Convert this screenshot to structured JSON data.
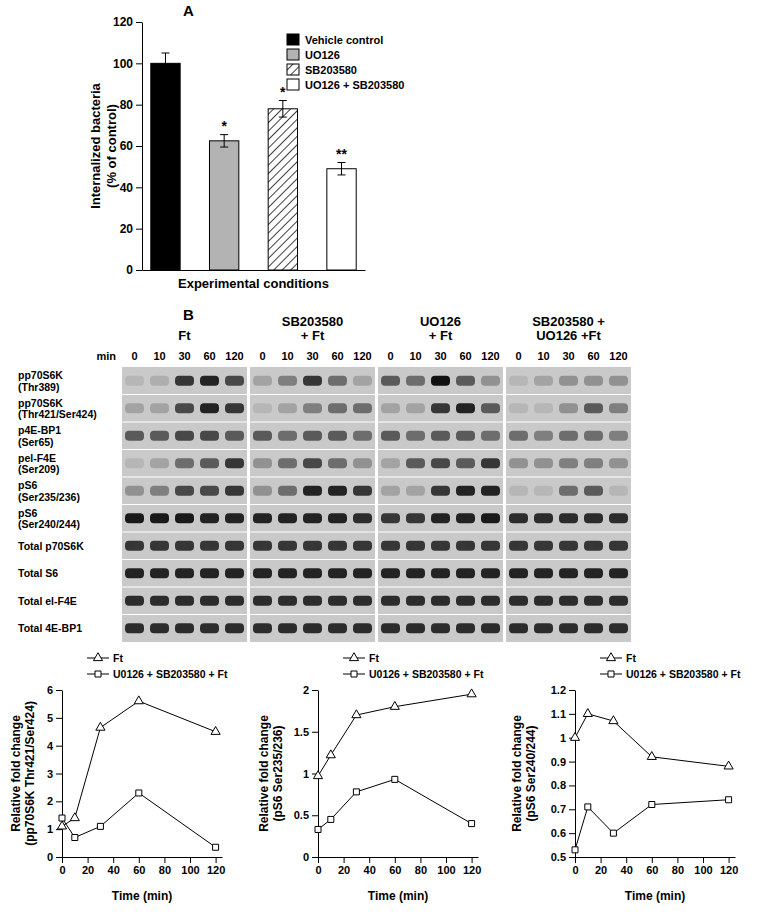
{
  "panel_labels": [
    "A",
    "B"
  ],
  "chart_data": [
    {
      "type": "bar",
      "categories": [
        null
      ],
      "series": [
        {
          "name": "Vehicle control",
          "color": "#000000",
          "values": [
            100
          ],
          "error": [
            5
          ]
        },
        {
          "name": "UO126",
          "color": "#b3b3b3",
          "values": [
            62.5
          ],
          "error": [
            3
          ],
          "significance": "*"
        },
        {
          "name": "SB203580",
          "color": "#ffffff",
          "line_style": "hatched",
          "values": [
            78
          ],
          "error": [
            4
          ],
          "significance": "*"
        },
        {
          "name": "UO126 + SB203580",
          "color": "#ffffff",
          "values": [
            49
          ],
          "error": [
            3
          ],
          "significance": "**"
        }
      ],
      "x_label": "Experimental conditions",
      "y_label": [
        "Internalized bacteria",
        "(% of control)"
      ],
      "ylim": [
        0,
        120
      ],
      "yticks": [
        0,
        20,
        40,
        60,
        80,
        100,
        120
      ],
      "legend": "upper right",
      "tick_labels": "y"
    },
    {
      "type": "line",
      "x": [
        0,
        10,
        30,
        60,
        120
      ],
      "series": [
        {
          "name": "Ft",
          "color": "#000000",
          "marker": "triangle",
          "values": [
            1.1,
            1.4,
            4.65,
            5.6,
            4.5
          ]
        },
        {
          "name": "U0126 + SB203580 + Ft",
          "color": "#000000",
          "marker": "square",
          "values": [
            1.4,
            0.7,
            1.1,
            2.3,
            0.35
          ]
        }
      ],
      "x_label": "Time (min)",
      "y_label": [
        "Relative fold change",
        "(pp70S6K Thr421/Ser424)"
      ],
      "xlim": [
        0,
        125
      ],
      "xticks": [
        0,
        20,
        40,
        60,
        80,
        100,
        120
      ],
      "ylim": [
        0,
        6
      ],
      "yticks": [
        0,
        1,
        2,
        3,
        4,
        5,
        6
      ],
      "legend": "upper left"
    },
    {
      "type": "line",
      "x": [
        0,
        10,
        30,
        60,
        120
      ],
      "series": [
        {
          "name": "Ft",
          "color": "#000000",
          "marker": "triangle",
          "values": [
            0.97,
            1.22,
            1.7,
            1.8,
            1.95
          ]
        },
        {
          "name": "U0126 + SB203580 + Ft",
          "color": "#000000",
          "marker": "square",
          "values": [
            0.33,
            0.45,
            0.78,
            0.93,
            0.4
          ]
        }
      ],
      "x_label": "Time (min)",
      "y_label": [
        "Relative fold change",
        "(pS6 Ser235/236)"
      ],
      "xlim": [
        0,
        125
      ],
      "xticks": [
        0,
        20,
        40,
        60,
        80,
        100,
        120
      ],
      "ylim": [
        0,
        2
      ],
      "yticks": [
        0,
        0.5,
        1,
        1.5,
        2
      ],
      "legend": "upper left"
    },
    {
      "type": "line",
      "x": [
        0,
        10,
        30,
        60,
        120
      ],
      "series": [
        {
          "name": "Ft",
          "color": "#000000",
          "marker": "triangle",
          "values": [
            1.0,
            1.1,
            1.07,
            0.92,
            0.88
          ]
        },
        {
          "name": "U0126 + SB203580 + Ft",
          "color": "#000000",
          "marker": "square",
          "values": [
            0.53,
            0.71,
            0.6,
            0.72,
            0.74
          ]
        }
      ],
      "x_label": "Time (min)",
      "y_label": [
        "Relative fold change",
        "(pS6 Ser240/244)"
      ],
      "xlim": [
        0,
        125
      ],
      "xticks": [
        0,
        20,
        40,
        60,
        80,
        100,
        120
      ],
      "ylim": [
        0.5,
        1.2
      ],
      "yticks": [
        0.5,
        0.6,
        0.7,
        0.8,
        0.9,
        1,
        1.1,
        1.2
      ],
      "legend": "upper left"
    }
  ],
  "blot": {
    "groups": [
      {
        "title": [
          "Ft"
        ]
      },
      {
        "title": [
          "SB203580",
          "+ Ft"
        ]
      },
      {
        "title": [
          "UO126",
          "+ Ft"
        ]
      },
      {
        "title": [
          "SB203580 +",
          "UO126 +Ft"
        ]
      }
    ],
    "time_label": "min",
    "times": [
      0,
      10,
      30,
      60,
      120
    ],
    "rows": [
      {
        "label": [
          "pp70S6K",
          "(Thr389)"
        ],
        "intensity": [
          [
            0.1,
            0.15,
            0.8,
            0.9,
            0.7
          ],
          [
            0.2,
            0.4,
            0.8,
            0.5,
            0.2
          ],
          [
            0.6,
            0.5,
            1.0,
            0.6,
            0.3
          ],
          [
            0.1,
            0.2,
            0.3,
            0.3,
            0.3
          ]
        ]
      },
      {
        "label": [
          "pp70S6K",
          "(Thr421/Ser424)"
        ],
        "intensity": [
          [
            0.2,
            0.2,
            0.7,
            0.9,
            0.8
          ],
          [
            0.1,
            0.2,
            0.4,
            0.5,
            0.5
          ],
          [
            0.2,
            0.2,
            0.8,
            0.9,
            0.6
          ],
          [
            0.1,
            0.1,
            0.3,
            0.6,
            0.4
          ]
        ]
      },
      {
        "label": [
          "p4E-BP1",
          "(Ser65)"
        ],
        "intensity": [
          [
            0.6,
            0.6,
            0.7,
            0.7,
            0.6
          ],
          [
            0.6,
            0.5,
            0.6,
            0.6,
            0.5
          ],
          [
            0.6,
            0.5,
            0.6,
            0.6,
            0.5
          ],
          [
            0.5,
            0.4,
            0.5,
            0.5,
            0.4
          ]
        ]
      },
      {
        "label": [
          "pel-F4E",
          "(Ser209)"
        ],
        "intensity": [
          [
            0.1,
            0.2,
            0.5,
            0.6,
            0.8
          ],
          [
            0.3,
            0.5,
            0.7,
            0.5,
            0.3
          ],
          [
            0.2,
            0.6,
            0.7,
            0.6,
            0.8
          ],
          [
            0.3,
            0.3,
            0.4,
            0.4,
            0.3
          ]
        ]
      },
      {
        "label": [
          "pS6",
          "(Ser235/236)"
        ],
        "intensity": [
          [
            0.3,
            0.4,
            0.7,
            0.7,
            0.8
          ],
          [
            0.3,
            0.5,
            0.9,
            0.9,
            0.8
          ],
          [
            0.2,
            0.2,
            0.8,
            0.9,
            0.9
          ],
          [
            0.1,
            0.1,
            0.5,
            0.6,
            0.1
          ]
        ]
      },
      {
        "label": [
          "pS6",
          "(Ser240/244)"
        ],
        "intensity": [
          [
            0.95,
            0.95,
            0.95,
            0.9,
            0.9
          ],
          [
            0.9,
            0.9,
            0.9,
            0.9,
            0.85
          ],
          [
            0.8,
            0.8,
            0.9,
            0.9,
            0.95
          ],
          [
            0.85,
            0.85,
            0.85,
            0.85,
            0.85
          ]
        ]
      },
      {
        "label": [
          "Total p70S6K"
        ],
        "intensity": [
          [
            0.8,
            0.8,
            0.8,
            0.8,
            0.8
          ],
          [
            0.8,
            0.8,
            0.8,
            0.8,
            0.8
          ],
          [
            0.8,
            0.8,
            0.8,
            0.8,
            0.8
          ],
          [
            0.8,
            0.8,
            0.8,
            0.8,
            0.8
          ]
        ]
      },
      {
        "label": [
          "Total S6"
        ],
        "intensity": [
          [
            0.9,
            0.9,
            0.9,
            0.9,
            0.9
          ],
          [
            0.9,
            0.9,
            0.9,
            0.9,
            0.9
          ],
          [
            0.9,
            0.9,
            0.9,
            0.9,
            0.9
          ],
          [
            0.9,
            0.9,
            0.9,
            0.9,
            0.9
          ]
        ]
      },
      {
        "label": [
          "Total el-F4E"
        ],
        "intensity": [
          [
            0.85,
            0.85,
            0.85,
            0.85,
            0.85
          ],
          [
            0.85,
            0.85,
            0.85,
            0.85,
            0.85
          ],
          [
            0.85,
            0.85,
            0.85,
            0.85,
            0.85
          ],
          [
            0.85,
            0.85,
            0.85,
            0.85,
            0.85
          ]
        ]
      },
      {
        "label": [
          "Total 4E-BP1"
        ],
        "intensity": [
          [
            0.85,
            0.85,
            0.85,
            0.85,
            0.85
          ],
          [
            0.85,
            0.85,
            0.85,
            0.85,
            0.85
          ],
          [
            0.85,
            0.85,
            0.85,
            0.85,
            0.85
          ],
          [
            0.85,
            0.85,
            0.85,
            0.85,
            0.85
          ]
        ]
      }
    ]
  }
}
